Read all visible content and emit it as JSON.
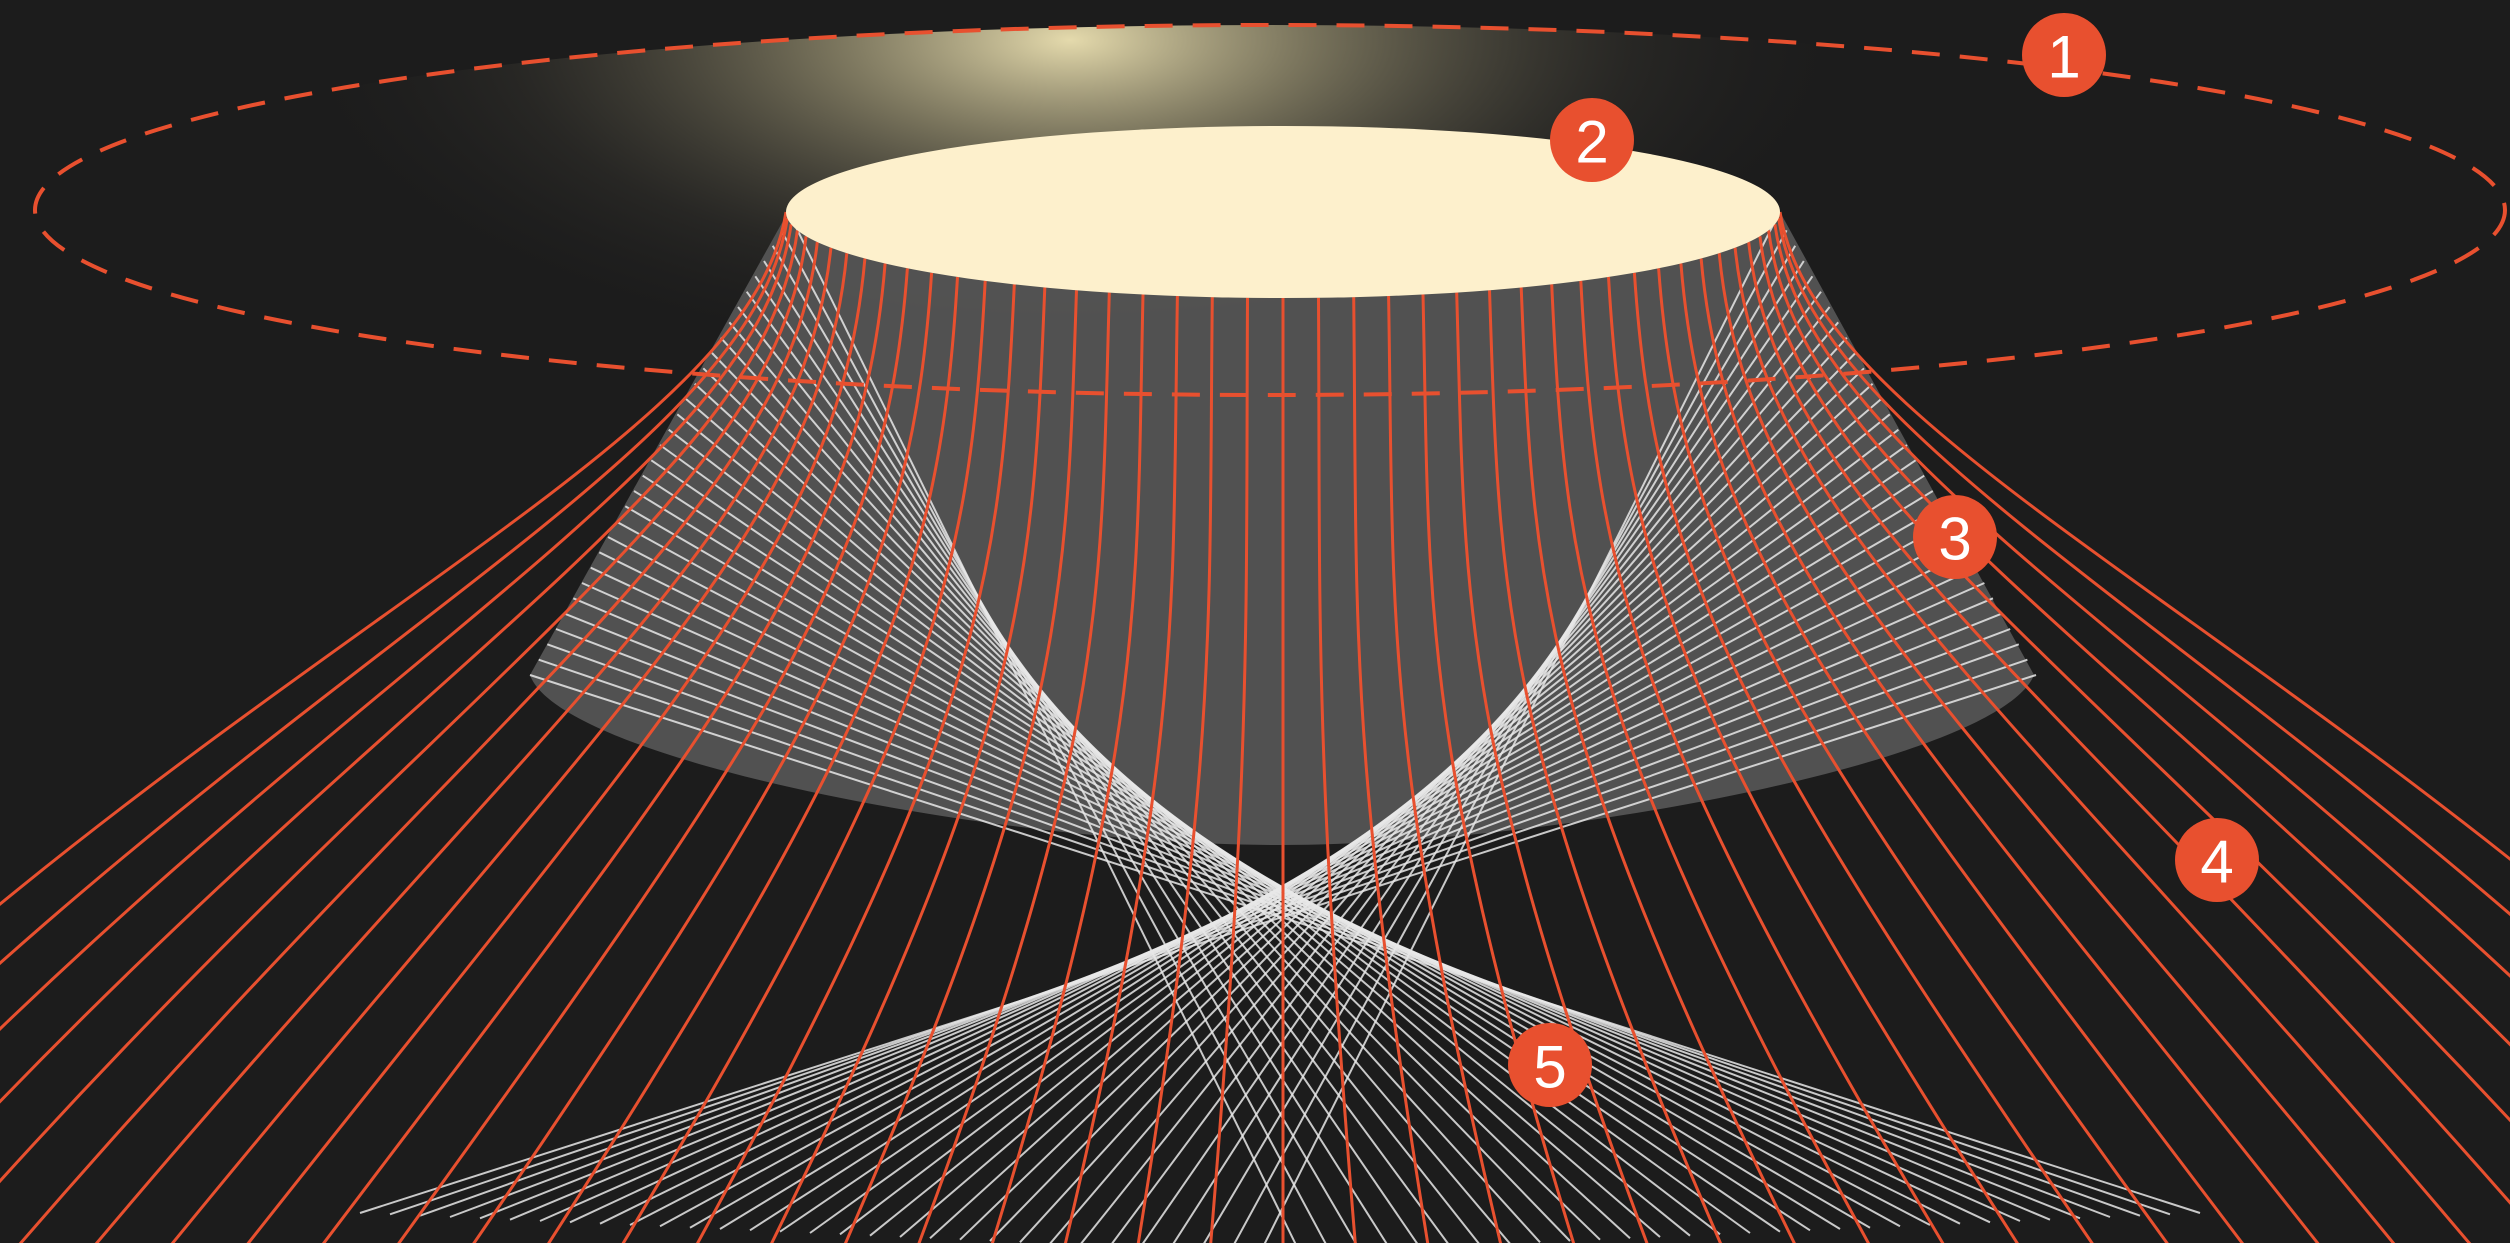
{
  "colors": {
    "background": "#1c1c1c",
    "accent": "#e8502f",
    "disc_fill": "#fdf0cc",
    "glow": "#e7dcaa",
    "frustum_fill": "#5d5d5d",
    "white_lines": "#e8e8e8"
  },
  "markers": [
    {
      "id": "1",
      "label": "1"
    },
    {
      "id": "2",
      "label": "2"
    },
    {
      "id": "3",
      "label": "3"
    },
    {
      "id": "4",
      "label": "4"
    },
    {
      "id": "5",
      "label": "5"
    }
  ]
}
